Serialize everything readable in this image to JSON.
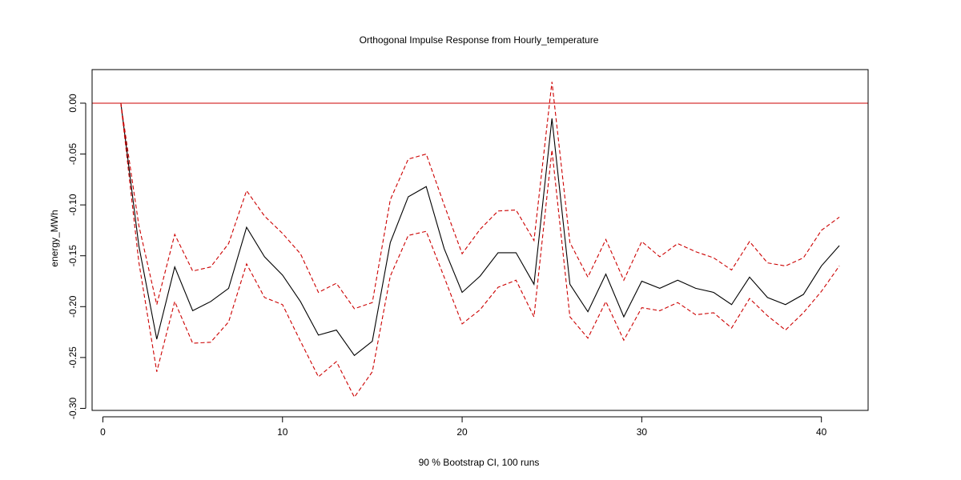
{
  "chart_data": {
    "type": "line",
    "title": "Orthogonal Impulse Response from Hourly_temperature",
    "xlabel": "90 % Bootstrap CI,  100 runs",
    "ylabel": "energy_MWh",
    "xlim": [
      -0.6,
      42.6
    ],
    "ylim": [
      -0.302,
      0.033
    ],
    "xticks": [
      0,
      10,
      20,
      30,
      40
    ],
    "yticks": [
      0.0,
      -0.05,
      -0.1,
      -0.15,
      -0.2,
      -0.25,
      -0.3
    ],
    "ytick_labels": [
      "0.00",
      "-0.05",
      "-0.10",
      "-0.15",
      "-0.20",
      "-0.25",
      "-0.30"
    ],
    "reference_line": {
      "y": 0,
      "color": "#cc0000"
    },
    "x": [
      1,
      2,
      3,
      4,
      5,
      6,
      7,
      8,
      9,
      10,
      11,
      12,
      13,
      14,
      15,
      16,
      17,
      18,
      19,
      20,
      21,
      22,
      23,
      24,
      25,
      26,
      27,
      28,
      29,
      30,
      31,
      32,
      33,
      34,
      35,
      36,
      37,
      38,
      39,
      40,
      41
    ],
    "series": [
      {
        "name": "",
        "role": "response",
        "color": "#000000",
        "dash": "solid",
        "values": [
          0.0,
          -0.14,
          -0.232,
          -0.161,
          -0.204,
          -0.195,
          -0.182,
          -0.122,
          -0.151,
          -0.169,
          -0.195,
          -0.228,
          -0.223,
          -0.248,
          -0.234,
          -0.137,
          -0.092,
          -0.082,
          -0.143,
          -0.186,
          -0.17,
          -0.147,
          -0.147,
          -0.178,
          -0.015,
          -0.178,
          -0.205,
          -0.168,
          -0.21,
          -0.175,
          -0.182,
          -0.174,
          -0.182,
          -0.186,
          -0.198,
          -0.171,
          -0.191,
          -0.198,
          -0.188,
          -0.16,
          -0.14
        ]
      },
      {
        "name": "",
        "role": "upper",
        "color": "#cc0000",
        "dash": "dashed",
        "values": [
          0.0,
          -0.12,
          -0.198,
          -0.129,
          -0.165,
          -0.161,
          -0.138,
          -0.086,
          -0.111,
          -0.128,
          -0.148,
          -0.186,
          -0.177,
          -0.202,
          -0.196,
          -0.095,
          -0.055,
          -0.05,
          -0.1,
          -0.148,
          -0.124,
          -0.106,
          -0.105,
          -0.135,
          0.021,
          -0.137,
          -0.171,
          -0.134,
          -0.174,
          -0.136,
          -0.151,
          -0.138,
          -0.146,
          -0.152,
          -0.164,
          -0.136,
          -0.157,
          -0.16,
          -0.152,
          -0.125,
          -0.112
        ]
      },
      {
        "name": "",
        "role": "lower",
        "color": "#cc0000",
        "dash": "dashed",
        "values": [
          0.0,
          -0.156,
          -0.264,
          -0.195,
          -0.236,
          -0.235,
          -0.215,
          -0.158,
          -0.191,
          -0.198,
          -0.234,
          -0.269,
          -0.254,
          -0.289,
          -0.264,
          -0.17,
          -0.13,
          -0.126,
          -0.171,
          -0.217,
          -0.203,
          -0.181,
          -0.174,
          -0.21,
          -0.046,
          -0.21,
          -0.231,
          -0.195,
          -0.233,
          -0.201,
          -0.204,
          -0.196,
          -0.208,
          -0.206,
          -0.221,
          -0.192,
          -0.209,
          -0.223,
          -0.206,
          -0.185,
          -0.16
        ]
      }
    ]
  }
}
